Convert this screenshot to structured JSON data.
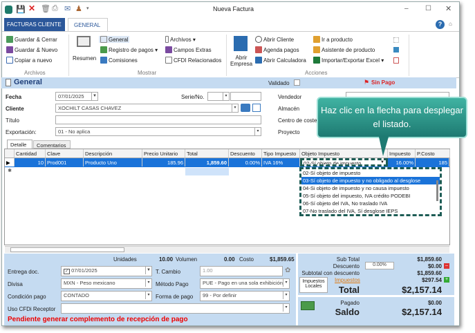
{
  "window": {
    "title": "Nueva Factura"
  },
  "tabs": {
    "facturas": "FACTURAS CLIENTE",
    "general": "GENERAL"
  },
  "ribbon": {
    "archivos": {
      "group": "Archivos",
      "items": [
        "Guardar & Cerrar",
        "Guardar & Nuevo",
        "Copiar a nuevo"
      ]
    },
    "mostrar": {
      "group": "Mostrar",
      "resumen": "Resumen",
      "items": [
        "General",
        "Registro de pagos",
        "Comisiones",
        "Archivos",
        "Campos Extras",
        "CFDI Relacionados"
      ]
    },
    "acciones": {
      "group": "Acciones",
      "abrir_empresa": "Abrir Empresa",
      "items": [
        "Abrir Cliente",
        "Agenda pagos",
        "Abrir Calculadora",
        "Ir a producto",
        "Asistente de producto",
        "Importar/Exportar Excel"
      ]
    }
  },
  "section": {
    "title": "General",
    "validado": "Validado",
    "status": "Sin Pago"
  },
  "form": {
    "fecha_label": "Fecha",
    "fecha": "07/01/2025",
    "serie_label": "Serie/No.",
    "cliente_label": "Cliente",
    "cliente": "XOCHILT CASAS CHAVEZ",
    "titulo_label": "Título",
    "titulo": "",
    "exportacion_label": "Exportación:",
    "exportacion": "01 - No aplica",
    "vendedor_label": "Vendedor",
    "almacen_label": "Almacén",
    "centro_label": "Centro de coste",
    "proyecto_label": "Proyecto"
  },
  "detail_tabs": [
    "Detalle",
    "Comentarios"
  ],
  "grid": {
    "columns": [
      "Cantidad",
      "Clave",
      "Descripción",
      "Precio Unitario",
      "Total",
      "Descuento",
      "Tipo Impuesto",
      "Objeto Impuesto",
      "Impuesto",
      "P.Costo"
    ],
    "row": [
      "10",
      "Prod001",
      "Producto Uno",
      "185.96",
      "1,859.60",
      "0.00%",
      "IVA 16%",
      "02-Sí objeto de impuesto",
      "16.00%",
      "185"
    ]
  },
  "dropdown_options": [
    "02-Sí objeto de impuesto",
    "03-Sí objeto de impuesto y no obligado al desglose",
    "04-Si objeto de impuesto y no causa impuesto",
    "05-Sí objeto del impuesto, IVA crédito PODEBI",
    "06-Sí objeto del IVA, No traslado IVA",
    "07-No traslado del IVA, Sí desglose IEPS"
  ],
  "dropdown_selected_index": 1,
  "tooltip": "Haz clic en la flecha para desplegar el listado.",
  "summary": {
    "unidades_label": "Unidades",
    "unidades": "10.00",
    "volumen_label": "Volumen",
    "volumen": "0.00",
    "costo_label": "Costo",
    "costo": "$1,859.65",
    "entrega_label": "Entrega doc.",
    "entrega": "07/01/2025",
    "tcambio_label": "T. Cambio",
    "tcambio": "1.00",
    "divisa_label": "Divisa",
    "divisa": "MXN - Peso mexicano",
    "metodo_label": "Método Pago",
    "metodo": "PUE - Pago en una sola exhibición",
    "condicion_label": "Condición pago",
    "condicion": "CONTADO",
    "forma_label": "Forma de pago",
    "forma": "99 - Por definir",
    "uso_label": "Uso CFDi Receptor",
    "uso": "",
    "warning": "Pendiente generar complemento de recepción de pago"
  },
  "totals": {
    "subtotal_label": "Sub Total",
    "subtotal": "$1,859.60",
    "descuento_label": "Descuento",
    "descuento_pct": "0.00%",
    "descuento": "$0.00",
    "subtotal_desc_label": "Subtotal con descuento",
    "subtotal_desc": "$1,859.60",
    "impuestos_link": "Impuestos",
    "impuestos": "$297.54",
    "impuestos_locales": "Impuestos Locales",
    "total_label": "Total",
    "total": "$2,157.14",
    "pagado_label": "Pagado",
    "pagado": "$0.00",
    "saldo_label": "Saldo",
    "saldo": "$2,157.14"
  }
}
